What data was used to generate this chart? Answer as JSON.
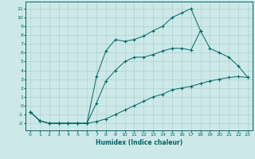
{
  "xlabel": "Humidex (Indice chaleur)",
  "xlim": [
    -0.5,
    23.5
  ],
  "ylim": [
    -2.8,
    11.8
  ],
  "yticks": [
    -2,
    -1,
    0,
    1,
    2,
    3,
    4,
    5,
    6,
    7,
    8,
    9,
    10,
    11
  ],
  "xticks": [
    0,
    1,
    2,
    3,
    4,
    5,
    6,
    7,
    8,
    9,
    10,
    11,
    12,
    13,
    14,
    15,
    16,
    17,
    18,
    19,
    20,
    21,
    22,
    23
  ],
  "bg_color": "#cde8e8",
  "grid_color": "#b0d0d0",
  "line_color": "#006666",
  "line1_x": [
    0,
    1,
    2,
    3,
    4,
    5,
    6,
    7,
    8,
    9,
    10,
    11,
    12,
    13,
    14,
    15,
    16,
    17,
    18
  ],
  "line1_y": [
    -0.7,
    -1.7,
    -2.0,
    -2.0,
    -2.0,
    -2.0,
    -2.0,
    3.3,
    6.2,
    7.5,
    7.3,
    7.5,
    7.9,
    8.5,
    9.0,
    10.0,
    10.5,
    11.0,
    8.5
  ],
  "line2_x": [
    0,
    1,
    2,
    3,
    4,
    5,
    6,
    7,
    8,
    9,
    10,
    11,
    12,
    13,
    14,
    15,
    16,
    17,
    18,
    19,
    20,
    21,
    22,
    23
  ],
  "line2_y": [
    -0.7,
    -1.7,
    -2.0,
    -2.0,
    -2.0,
    -2.0,
    -2.0,
    0.3,
    2.8,
    4.0,
    5.0,
    5.5,
    5.5,
    5.8,
    6.2,
    6.5,
    6.5,
    6.3,
    8.5,
    6.5,
    6.0,
    5.5,
    4.5,
    3.2
  ],
  "line3_x": [
    0,
    1,
    2,
    3,
    4,
    5,
    6,
    7,
    8,
    9,
    10,
    11,
    12,
    13,
    14,
    15,
    16,
    17,
    18,
    19,
    20,
    21,
    22,
    23
  ],
  "line3_y": [
    -0.7,
    -1.7,
    -2.0,
    -2.0,
    -2.0,
    -2.0,
    -2.0,
    -1.8,
    -1.5,
    -1.0,
    -0.5,
    0.0,
    0.5,
    1.0,
    1.3,
    1.8,
    2.0,
    2.2,
    2.5,
    2.8,
    3.0,
    3.2,
    3.3,
    3.2
  ]
}
